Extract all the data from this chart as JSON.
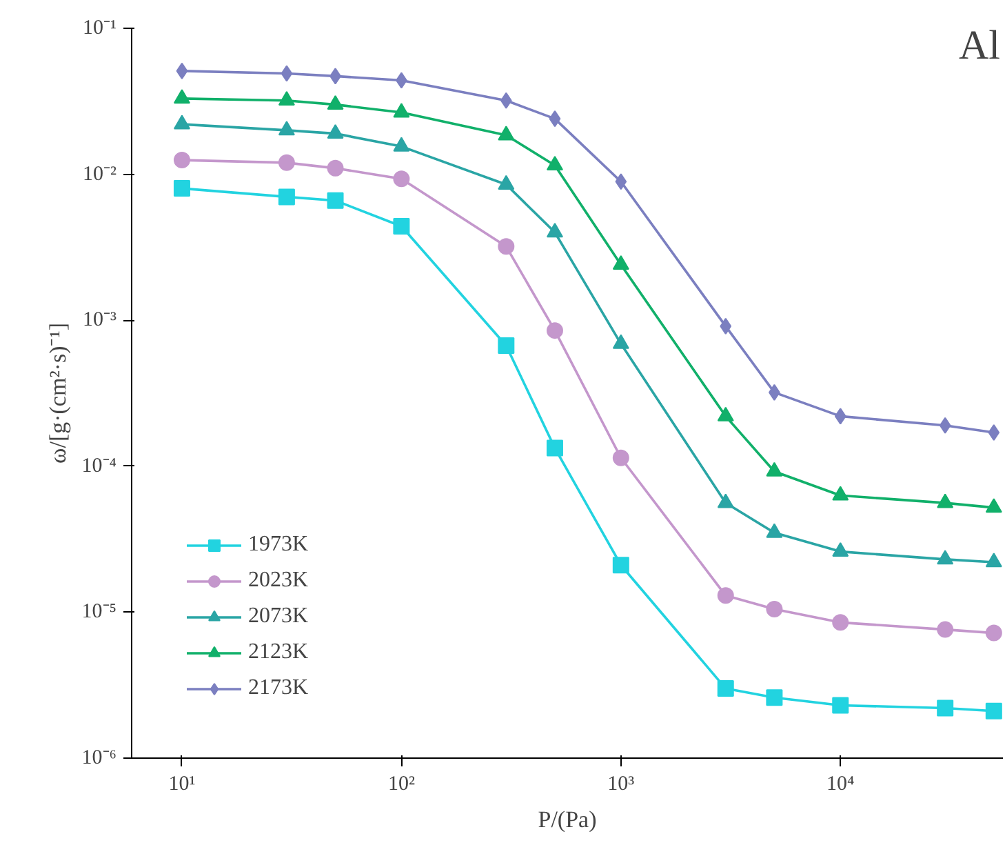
{
  "chart_data": {
    "type": "line",
    "xlabel": "P/(Pa)",
    "ylabel": "ω/[g·(cm²·s)⁻¹]",
    "annotations": [
      "Al"
    ],
    "log": "xy",
    "grid": false,
    "legend": "bottom left",
    "line_style": "solid",
    "x": [
      10,
      30,
      50,
      100,
      300,
      500,
      1000,
      3000,
      5000,
      10000,
      30000,
      50000
    ],
    "xlim": [
      5.9,
      55000
    ],
    "ylim": [
      1e-06,
      0.1
    ],
    "xticks": [
      {
        "value": 10,
        "label": "10¹"
      },
      {
        "value": 100,
        "label": "10²"
      },
      {
        "value": 1000,
        "label": "10³"
      },
      {
        "value": 10000,
        "label": "10⁴"
      }
    ],
    "yticks": [
      {
        "value": 1e-06,
        "label": "10⁻⁶"
      },
      {
        "value": 1e-05,
        "label": "10⁻⁵"
      },
      {
        "value": 0.0001,
        "label": "10⁻⁴"
      },
      {
        "value": 0.001,
        "label": "10⁻³"
      },
      {
        "value": 0.01,
        "label": "10⁻²"
      },
      {
        "value": 0.1,
        "label": "10⁻¹"
      }
    ],
    "series": [
      {
        "name": "1973K",
        "color": "#22d3e0",
        "marker": "square",
        "values": [
          0.008,
          0.007,
          0.0066,
          0.0044,
          0.00067,
          0.000133,
          2.1e-05,
          3e-06,
          2.6e-06,
          2.3e-06,
          2.2e-06,
          2.1e-06
        ]
      },
      {
        "name": "2023K",
        "color": "#c497cc",
        "marker": "circle",
        "values": [
          0.0125,
          0.012,
          0.011,
          0.0093,
          0.0032,
          0.00085,
          0.000114,
          1.3e-05,
          1.05e-05,
          8.5e-06,
          7.6e-06,
          7.2e-06
        ]
      },
      {
        "name": "2073K",
        "color": "#2aa5a5",
        "marker": "triangle",
        "values": [
          0.022,
          0.02,
          0.019,
          0.0155,
          0.0085,
          0.004,
          0.00069,
          5.6e-05,
          3.5e-05,
          2.6e-05,
          2.3e-05,
          2.2e-05
        ]
      },
      {
        "name": "2123K",
        "color": "#11b06a",
        "marker": "triangle",
        "values": [
          0.033,
          0.032,
          0.03,
          0.0265,
          0.0185,
          0.0115,
          0.0024,
          0.00022,
          9.2e-05,
          6.3e-05,
          5.6e-05,
          5.2e-05
        ]
      },
      {
        "name": "2173K",
        "color": "#7b7fc0",
        "marker": "diamond",
        "values": [
          0.051,
          0.049,
          0.047,
          0.044,
          0.032,
          0.024,
          0.0089,
          0.00091,
          0.00032,
          0.00022,
          0.00019,
          0.00017
        ]
      }
    ]
  }
}
